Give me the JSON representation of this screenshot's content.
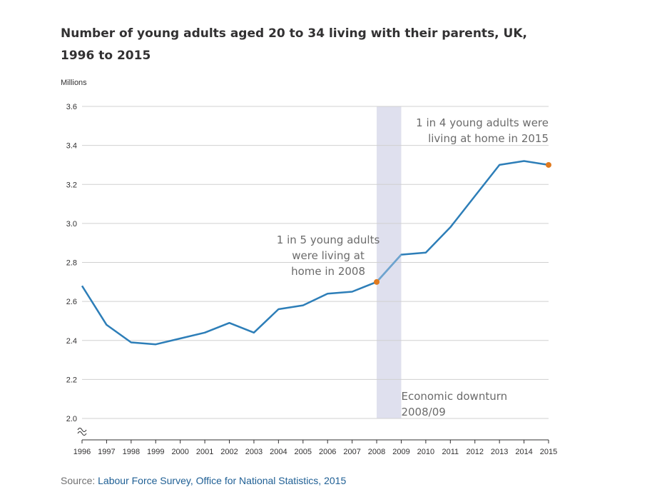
{
  "title": "Number of young adults aged 20 to 34 living with their parents, UK, 1996 to 2015",
  "unit_label": "Millions",
  "source": {
    "prefix": "Source: ",
    "link_text": "Labour Force Survey, Office for National Statistics, 2015"
  },
  "colors": {
    "line": "#2d7eb8",
    "shade": "#dfe0ee",
    "marker": "#e07a1f",
    "axis": "#323132"
  },
  "chart_data": {
    "type": "line",
    "title": "Number of young adults aged 20 to 34 living with their parents, UK, 1996 to 2015",
    "ylabel": "Millions",
    "x": [
      1996,
      1997,
      1998,
      1999,
      2000,
      2001,
      2002,
      2003,
      2004,
      2005,
      2006,
      2007,
      2008,
      2009,
      2010,
      2011,
      2012,
      2013,
      2014,
      2015
    ],
    "x_tick_labels": [
      "1996",
      "1997",
      "1998",
      "1999",
      "2000",
      "2001",
      "2002",
      "2003",
      "2004",
      "2005",
      "2006",
      "2007",
      "2008",
      "2009",
      "2010",
      "2011",
      "2012",
      "2013",
      "2014",
      "2015"
    ],
    "series": [
      {
        "values": [
          2.68,
          2.48,
          2.39,
          2.38,
          2.41,
          2.44,
          2.49,
          2.44,
          2.56,
          2.58,
          2.64,
          2.65,
          2.7,
          2.84,
          2.85,
          2.98,
          3.14,
          3.3,
          3.32,
          3.3
        ]
      }
    ],
    "ylim": [
      2.0,
      3.6
    ],
    "y_ticks": [
      "2.0",
      "2.2",
      "2.4",
      "2.6",
      "2.8",
      "3.0",
      "3.2",
      "3.4",
      "3.6"
    ],
    "grid": true,
    "axis_break": true,
    "shaded_region": {
      "from": 2008,
      "to": 2009,
      "label": [
        "Economic downturn",
        "2008/09"
      ]
    },
    "highlight_points": [
      {
        "x": 2008,
        "y": 2.7,
        "label": [
          "1 in 5 young adults",
          "were living at",
          "home in 2008"
        ]
      },
      {
        "x": 2015,
        "y": 3.3,
        "label": [
          "1 in 4 young adults were",
          "living at home in 2015"
        ]
      }
    ]
  }
}
